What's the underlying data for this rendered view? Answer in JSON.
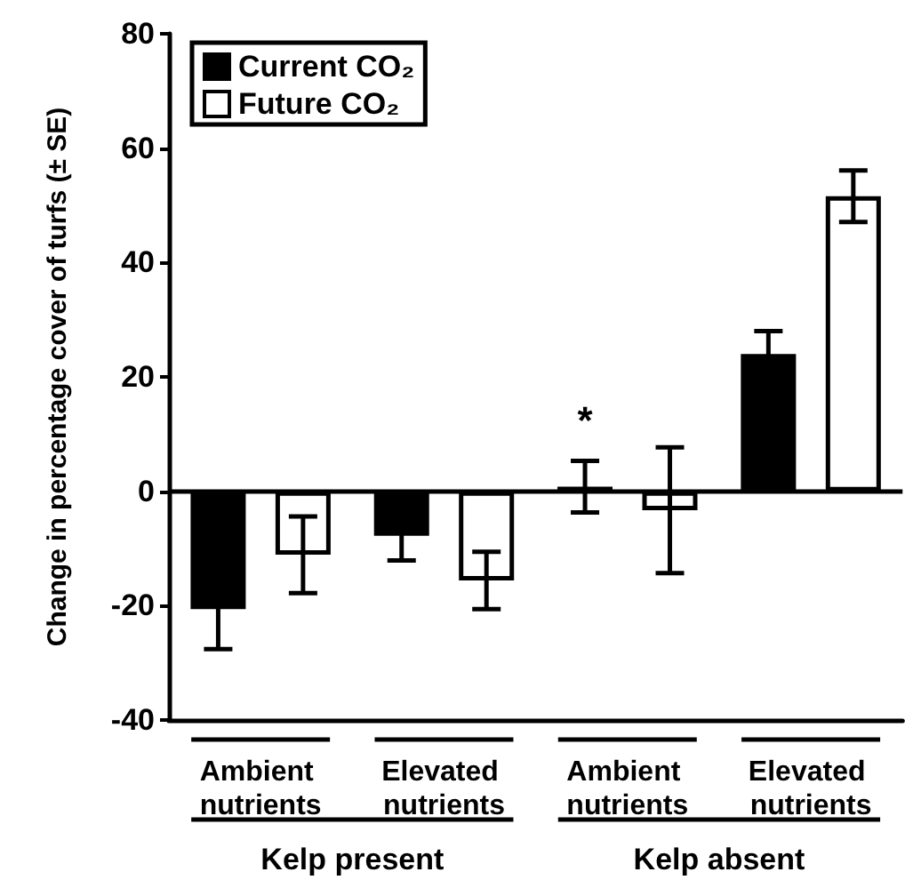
{
  "chart_data": {
    "type": "bar",
    "ylabel": "Change in percentage cover of turfs (± SE)",
    "categories": [
      "Ambient nutrients",
      "Elevated nutrients",
      "Ambient nutrients",
      "Elevated nutrients"
    ],
    "series": [
      {
        "name": "Current CO₂",
        "color": "#000000",
        "values": [
          -20.6,
          -7.8,
          0.8,
          24
        ],
        "errors": [
          7,
          4.3,
          4.5,
          4
        ],
        "value_labels": [
          null,
          null,
          "*",
          null
        ]
      },
      {
        "name": "Future CO₂",
        "color": "#ffffff",
        "values": [
          -11.1,
          -15.6,
          -3.3,
          51.6
        ],
        "errors": [
          6.7,
          5,
          11,
          4.5
        ]
      }
    ],
    "annotations": [
      "Kelp present",
      "Kelp absent"
    ],
    "ylim": [
      -40,
      80
    ],
    "yticks": [
      -40,
      -20,
      0,
      20,
      40,
      60,
      80
    ],
    "legend": "top left"
  }
}
